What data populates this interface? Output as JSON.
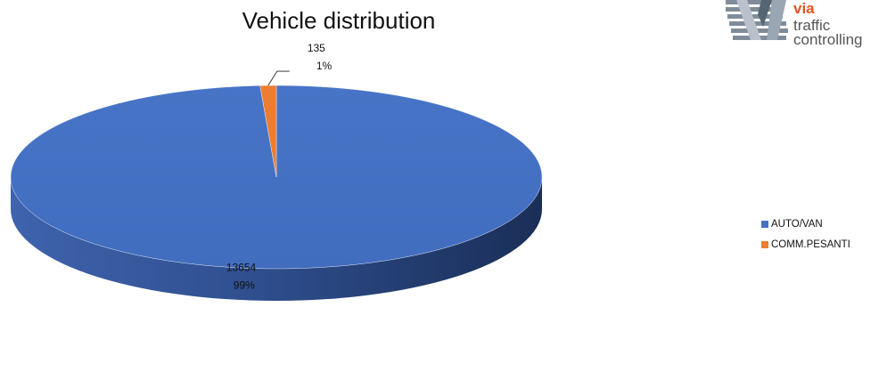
{
  "chart_data": {
    "type": "pie",
    "title": "Vehicle distribution",
    "categories": [
      "AUTO/VAN",
      "COMM.PESANTI"
    ],
    "values": [
      13654,
      135
    ],
    "percent_labels": [
      "99%",
      "1%"
    ],
    "colors": [
      "#4472c4",
      "#ed7d31"
    ],
    "legend_position": "right",
    "style": "3d"
  },
  "logo": {
    "line1": "via",
    "line2": "traffic",
    "line3": "controlling",
    "accent_color": "#e8521e"
  }
}
